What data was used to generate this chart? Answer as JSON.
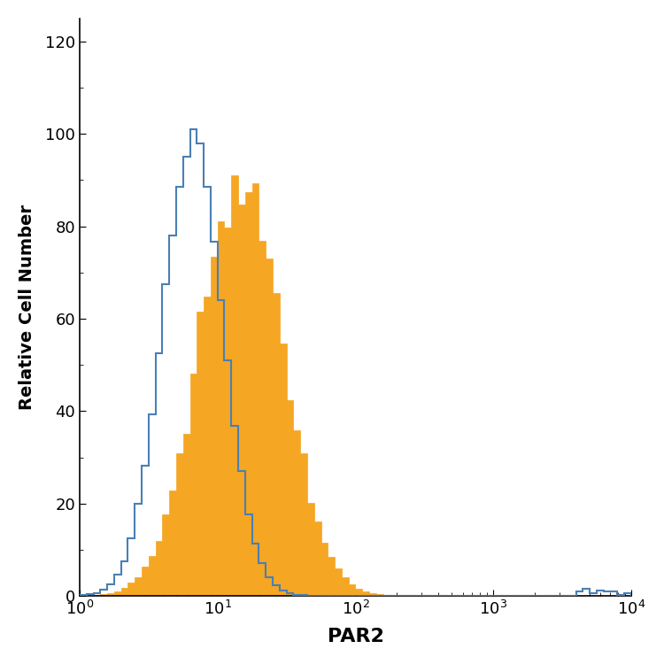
{
  "title": "",
  "xlabel": "PAR2",
  "ylabel": "Relative Cell Number",
  "xlim": [
    1,
    10000
  ],
  "ylim": [
    0,
    125
  ],
  "yticks": [
    0,
    20,
    40,
    60,
    80,
    100,
    120
  ],
  "background_color": "#ffffff",
  "blue_color": "#4a7fb5",
  "orange_color": "#f5a623",
  "xlabel_fontsize": 16,
  "ylabel_fontsize": 14,
  "tick_fontsize": 13,
  "n_bins": 80,
  "blue_peak_log": 0.82,
  "blue_sigma_log": 0.22,
  "blue_peak_y": 101,
  "orange_peak_log": 1.17,
  "orange_sigma_log": 0.3,
  "orange_peak_y": 91
}
